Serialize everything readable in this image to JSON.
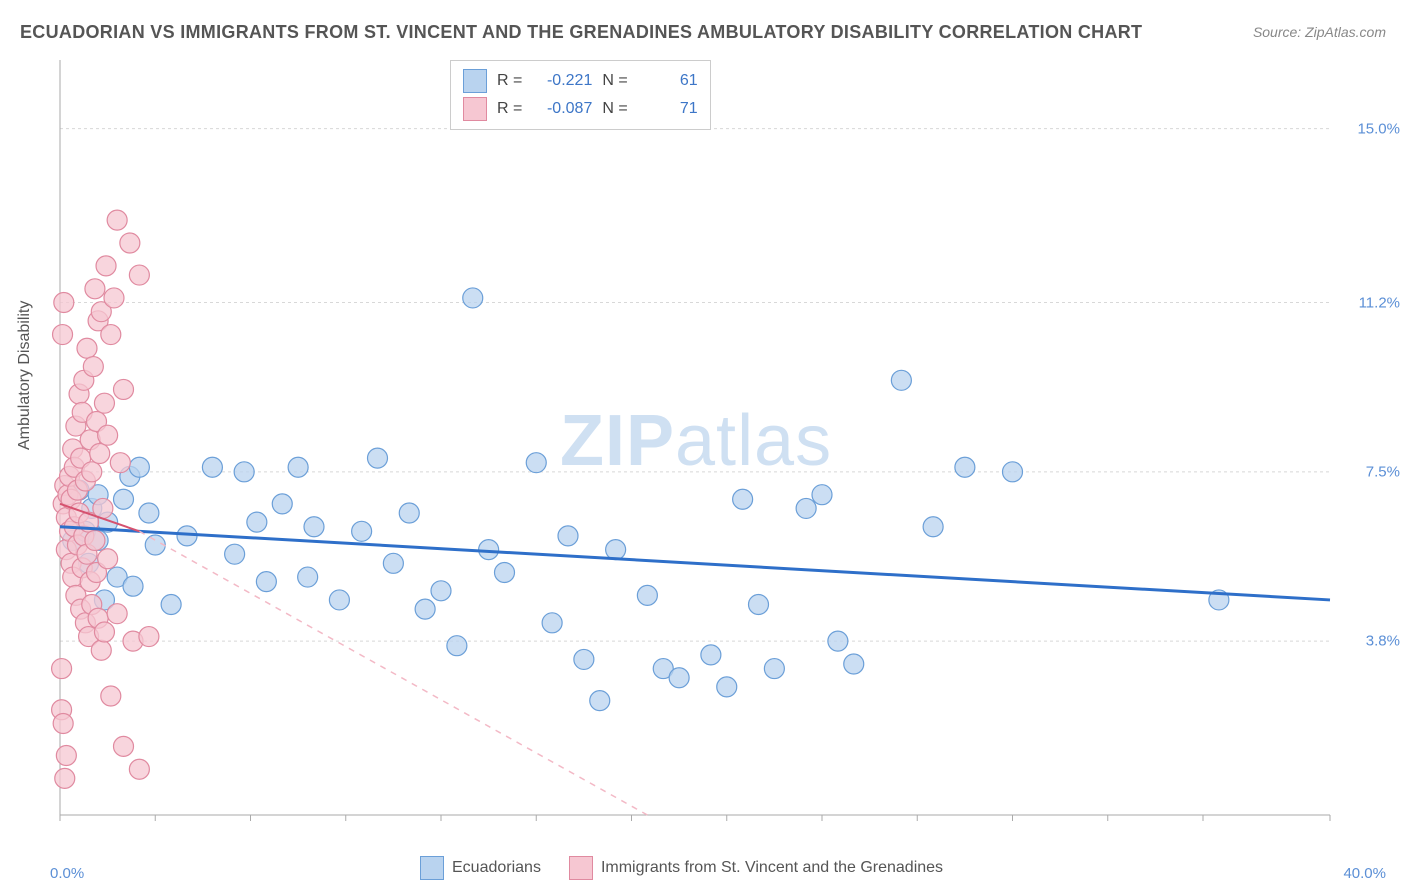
{
  "title": "ECUADORIAN VS IMMIGRANTS FROM ST. VINCENT AND THE GRENADINES AMBULATORY DISABILITY CORRELATION CHART",
  "source": "Source: ZipAtlas.com",
  "ylabel": "Ambulatory Disability",
  "watermark_zip": "ZIP",
  "watermark_atlas": "atlas",
  "chart": {
    "type": "scatter",
    "background_color": "#ffffff",
    "grid_color": "#d8d8d8",
    "axis_color": "#aaaaaa",
    "xlim": [
      0,
      40
    ],
    "ylim": [
      0,
      16.5
    ],
    "xticks": [
      0,
      3,
      6,
      9,
      12,
      15,
      18,
      21,
      24,
      27,
      30,
      33,
      36,
      40
    ],
    "xtick_labels": {
      "left": "0.0%",
      "right": "40.0%"
    },
    "ygrid": [
      3.8,
      7.5,
      11.2,
      15.0
    ],
    "ytick_labels": [
      "3.8%",
      "7.5%",
      "11.2%",
      "15.0%"
    ],
    "series": [
      {
        "name": "Ecuadorians",
        "color_fill": "#b9d3ef",
        "color_stroke": "#6b9fd8",
        "marker_radius": 10,
        "marker_opacity": 0.75,
        "R": "-0.221",
        "N": "61",
        "trend": {
          "x1": 0,
          "y1": 6.3,
          "x2": 40,
          "y2": 4.7,
          "color": "#2e6fc9",
          "width": 3,
          "dash": "none"
        },
        "points": [
          [
            0.4,
            6.0
          ],
          [
            0.6,
            7.1
          ],
          [
            0.8,
            6.2
          ],
          [
            0.9,
            5.5
          ],
          [
            1.0,
            6.7
          ],
          [
            1.2,
            7.0
          ],
          [
            1.2,
            6.0
          ],
          [
            1.4,
            4.7
          ],
          [
            1.5,
            6.4
          ],
          [
            1.8,
            5.2
          ],
          [
            2.0,
            6.9
          ],
          [
            2.2,
            7.4
          ],
          [
            2.3,
            5.0
          ],
          [
            2.5,
            7.6
          ],
          [
            2.8,
            6.6
          ],
          [
            3.0,
            5.9
          ],
          [
            3.5,
            4.6
          ],
          [
            4.0,
            6.1
          ],
          [
            4.8,
            7.6
          ],
          [
            5.5,
            5.7
          ],
          [
            5.8,
            7.5
          ],
          [
            6.2,
            6.4
          ],
          [
            6.5,
            5.1
          ],
          [
            7.0,
            6.8
          ],
          [
            7.5,
            7.6
          ],
          [
            7.8,
            5.2
          ],
          [
            8.0,
            6.3
          ],
          [
            8.8,
            4.7
          ],
          [
            9.5,
            6.2
          ],
          [
            10.0,
            7.8
          ],
          [
            10.5,
            5.5
          ],
          [
            11.0,
            6.6
          ],
          [
            11.5,
            4.5
          ],
          [
            12.0,
            4.9
          ],
          [
            12.5,
            3.7
          ],
          [
            13.0,
            11.3
          ],
          [
            13.5,
            5.8
          ],
          [
            14.0,
            5.3
          ],
          [
            15.0,
            7.7
          ],
          [
            15.5,
            4.2
          ],
          [
            16.0,
            6.1
          ],
          [
            16.5,
            3.4
          ],
          [
            17.0,
            2.5
          ],
          [
            17.5,
            5.8
          ],
          [
            18.5,
            4.8
          ],
          [
            19.0,
            3.2
          ],
          [
            19.5,
            3.0
          ],
          [
            20.5,
            3.5
          ],
          [
            21.0,
            2.8
          ],
          [
            21.5,
            6.9
          ],
          [
            22.0,
            4.6
          ],
          [
            22.5,
            3.2
          ],
          [
            23.5,
            6.7
          ],
          [
            24.0,
            7.0
          ],
          [
            24.5,
            3.8
          ],
          [
            25.0,
            3.3
          ],
          [
            26.5,
            9.5
          ],
          [
            27.5,
            6.3
          ],
          [
            28.5,
            7.6
          ],
          [
            30.0,
            7.5
          ],
          [
            36.5,
            4.7
          ]
        ]
      },
      {
        "name": "Immigrants from St. Vincent and the Grenadines",
        "color_fill": "#f6c7d2",
        "color_stroke": "#e08aa0",
        "marker_radius": 10,
        "marker_opacity": 0.75,
        "R": "-0.087",
        "N": "71",
        "trend": {
          "x1": 0,
          "y1": 6.8,
          "x2": 2.5,
          "y2": 6.2,
          "color": "#d6526f",
          "width": 2,
          "dash": "none"
        },
        "trend_ext": {
          "x1": 2.5,
          "y1": 6.2,
          "x2": 18.5,
          "y2": 0,
          "color": "#f3b9c6",
          "width": 1.5,
          "dash": "6,6"
        },
        "points": [
          [
            0.1,
            6.8
          ],
          [
            0.15,
            7.2
          ],
          [
            0.2,
            6.5
          ],
          [
            0.2,
            5.8
          ],
          [
            0.25,
            7.0
          ],
          [
            0.3,
            6.2
          ],
          [
            0.3,
            7.4
          ],
          [
            0.35,
            5.5
          ],
          [
            0.35,
            6.9
          ],
          [
            0.4,
            8.0
          ],
          [
            0.4,
            5.2
          ],
          [
            0.45,
            7.6
          ],
          [
            0.45,
            6.3
          ],
          [
            0.5,
            8.5
          ],
          [
            0.5,
            4.8
          ],
          [
            0.55,
            7.1
          ],
          [
            0.55,
            5.9
          ],
          [
            0.6,
            9.2
          ],
          [
            0.6,
            6.6
          ],
          [
            0.65,
            4.5
          ],
          [
            0.65,
            7.8
          ],
          [
            0.7,
            5.4
          ],
          [
            0.7,
            8.8
          ],
          [
            0.75,
            6.1
          ],
          [
            0.75,
            9.5
          ],
          [
            0.8,
            4.2
          ],
          [
            0.8,
            7.3
          ],
          [
            0.85,
            5.7
          ],
          [
            0.85,
            10.2
          ],
          [
            0.9,
            6.4
          ],
          [
            0.9,
            3.9
          ],
          [
            0.95,
            8.2
          ],
          [
            0.95,
            5.1
          ],
          [
            1.0,
            7.5
          ],
          [
            1.0,
            4.6
          ],
          [
            1.05,
            9.8
          ],
          [
            1.1,
            6.0
          ],
          [
            1.1,
            11.5
          ],
          [
            1.15,
            5.3
          ],
          [
            1.15,
            8.6
          ],
          [
            1.2,
            4.3
          ],
          [
            1.2,
            10.8
          ],
          [
            1.25,
            7.9
          ],
          [
            1.3,
            3.6
          ],
          [
            1.3,
            11.0
          ],
          [
            1.35,
            6.7
          ],
          [
            1.4,
            9.0
          ],
          [
            1.4,
            4.0
          ],
          [
            1.45,
            12.0
          ],
          [
            1.5,
            5.6
          ],
          [
            1.5,
            8.3
          ],
          [
            1.6,
            2.6
          ],
          [
            1.6,
            10.5
          ],
          [
            1.7,
            11.3
          ],
          [
            1.8,
            4.4
          ],
          [
            1.9,
            7.7
          ],
          [
            2.0,
            1.5
          ],
          [
            2.0,
            9.3
          ],
          [
            2.2,
            12.5
          ],
          [
            2.3,
            3.8
          ],
          [
            2.5,
            1.0
          ],
          [
            2.5,
            11.8
          ],
          [
            0.05,
            2.3
          ],
          [
            0.1,
            2.0
          ],
          [
            0.15,
            0.8
          ],
          [
            0.2,
            1.3
          ],
          [
            1.8,
            13.0
          ],
          [
            2.8,
            3.9
          ],
          [
            0.05,
            3.2
          ],
          [
            0.12,
            11.2
          ],
          [
            0.08,
            10.5
          ]
        ]
      }
    ]
  },
  "correlation_box": {
    "rows": [
      {
        "swatch_fill": "#b9d3ef",
        "swatch_stroke": "#6b9fd8",
        "R_label": "R =",
        "R_val": "-0.221",
        "N_label": "N =",
        "N_val": "61"
      },
      {
        "swatch_fill": "#f6c7d2",
        "swatch_stroke": "#e08aa0",
        "R_label": "R =",
        "R_val": "-0.087",
        "N_label": "N =",
        "N_val": "71"
      }
    ]
  },
  "bottom_legend": [
    {
      "swatch_fill": "#b9d3ef",
      "swatch_stroke": "#6b9fd8",
      "label": "Ecuadorians"
    },
    {
      "swatch_fill": "#f6c7d2",
      "swatch_stroke": "#e08aa0",
      "label": "Immigrants from St. Vincent and the Grenadines"
    }
  ]
}
